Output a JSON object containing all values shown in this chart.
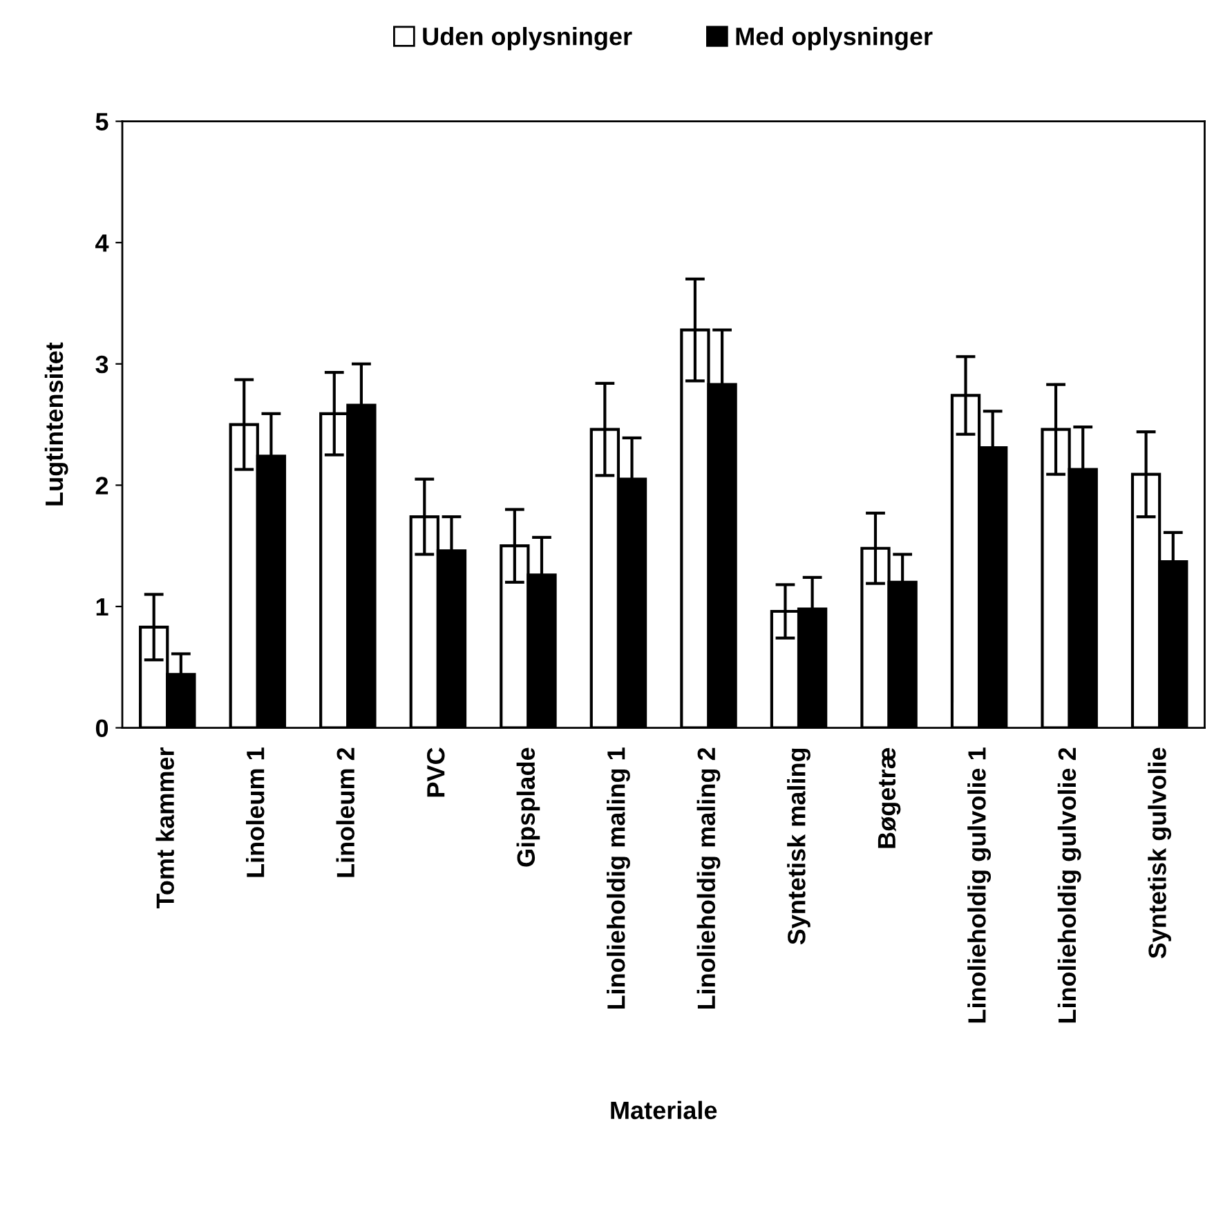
{
  "chart_data": {
    "type": "bar",
    "xlabel": "Materiale",
    "ylabel": "Lugtintensitet",
    "categories": [
      "Tomt kammer",
      "Linoleum 1",
      "Linoleum 2",
      "PVC",
      "Gipsplade",
      "Linolieholdig maling 1",
      "Linolieholdig maling 2",
      "Syntetisk maling",
      "Bøgetræ",
      "Linolieholdig gulvolie 1",
      "Linolieholdig gulvolie 2",
      "Syntetisk gulvolie"
    ],
    "series": [
      {
        "name": "Uden oplysninger",
        "color": "#ffffff",
        "values": [
          0.83,
          2.5,
          2.59,
          1.74,
          1.5,
          2.46,
          3.28,
          0.96,
          1.48,
          2.74,
          2.46,
          2.09
        ],
        "errors": [
          0.27,
          0.37,
          0.34,
          0.31,
          0.3,
          0.38,
          0.42,
          0.22,
          0.29,
          0.32,
          0.37,
          0.35
        ]
      },
      {
        "name": "Med oplysninger",
        "color": "#000000",
        "values": [
          0.44,
          2.24,
          2.66,
          1.46,
          1.26,
          2.05,
          2.83,
          0.98,
          1.2,
          2.31,
          2.13,
          1.37
        ],
        "errors": [
          0.17,
          0.35,
          0.34,
          0.28,
          0.31,
          0.34,
          0.45,
          0.26,
          0.23,
          0.3,
          0.35,
          0.24
        ]
      }
    ],
    "ylim": [
      0,
      5
    ],
    "yticks": [
      0,
      1,
      2,
      3,
      4,
      5
    ],
    "grid": false,
    "legend": "top"
  }
}
